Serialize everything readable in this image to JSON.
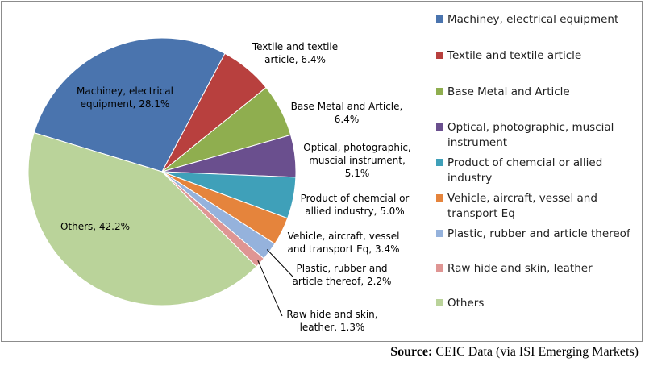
{
  "chart_data": {
    "type": "pie",
    "categories": [
      "Machiney, electrical equipment",
      "Textile and textile article",
      "Base Metal and Article",
      "Optical, photographic, muscial instrument",
      "Product of chemcial or allied industry",
      "Vehicle, aircraft, vessel and transport Eq",
      "Plastic, rubber and article thereof",
      "Raw hide and skin, leather",
      "Others"
    ],
    "values": [
      28.1,
      6.4,
      6.4,
      5.1,
      5.0,
      3.4,
      2.2,
      1.3,
      42.2
    ],
    "colors": [
      "#4a74ae",
      "#b8403e",
      "#8fae4f",
      "#6a4f8e",
      "#3fa0b9",
      "#e5843c",
      "#95b2dc",
      "#df9593",
      "#bad39a"
    ],
    "data_labels": [
      [
        "Machiney, electrical",
        "equipment, 28.1%"
      ],
      [
        "Textile and textile",
        "article, 6.4%"
      ],
      [
        "Base Metal and Article,",
        "6.4%"
      ],
      [
        "Optical, photographic,",
        "muscial instrument,",
        "5.1%"
      ],
      [
        "Product of chemcial or",
        "allied industry, 5.0%"
      ],
      [
        "Vehicle, aircraft, vessel",
        "and transport Eq, 3.4%"
      ],
      [
        "Plastic, rubber and",
        "article thereof, 2.2%"
      ],
      [
        "Raw hide and skin,",
        "leather, 1.3%"
      ],
      [
        "Others, 42.2%"
      ]
    ],
    "legend": [
      [
        "Machiney, electrical equipment"
      ],
      [
        "Textile and textile article"
      ],
      [
        "Base Metal and Article"
      ],
      [
        "Optical, photographic, muscial",
        "instrument"
      ],
      [
        "Product of chemcial or allied",
        "industry"
      ],
      [
        "Vehicle, aircraft, vessel and",
        "transport Eq"
      ],
      [
        "Plastic, rubber and article thereof"
      ],
      [
        "Raw hide and skin, leather"
      ],
      [
        "Others"
      ]
    ],
    "legend_position": "right"
  },
  "source": {
    "label": "Source:",
    "text": "CEIC Data (via ISI Emerging Markets)"
  }
}
